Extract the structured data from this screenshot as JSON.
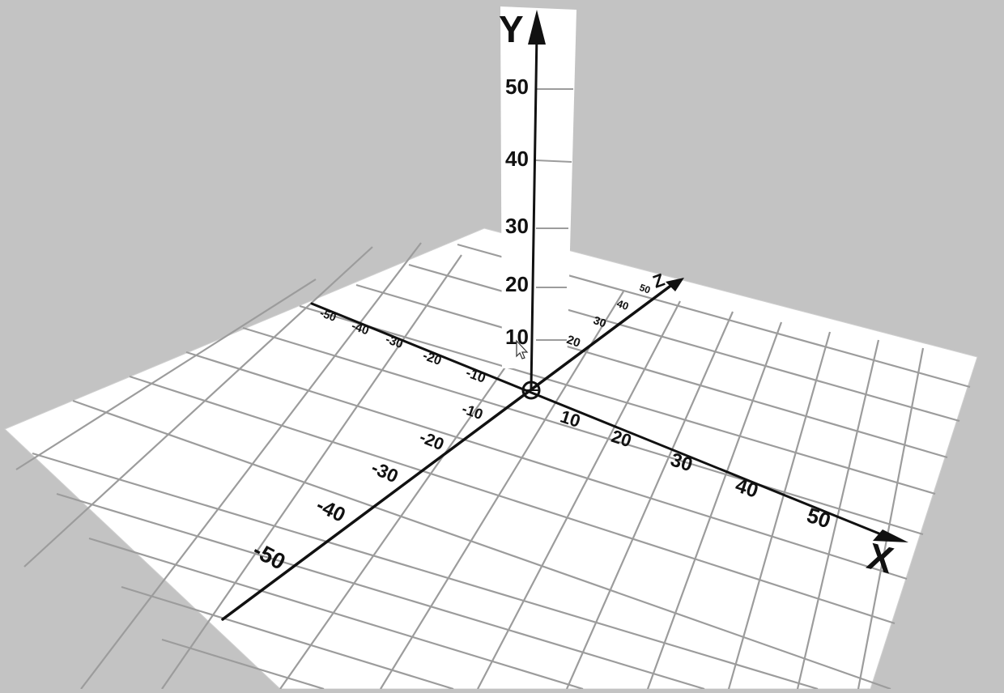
{
  "scene": {
    "background_color": "#c3c3c3",
    "floor_color": "#ffffff",
    "grid_color": "#9a9a9a",
    "axis_color": "#111111",
    "wall_color": "#ffffff"
  },
  "axes": {
    "x": {
      "label": "X",
      "ticks": [
        "10",
        "20",
        "30",
        "40",
        "50"
      ]
    },
    "y": {
      "label": "Y",
      "ticks": [
        "10",
        "20",
        "30",
        "40",
        "50"
      ]
    },
    "z": {
      "label": "Z",
      "positive_ticks": [
        "20",
        "30",
        "40",
        "50"
      ],
      "negative_ticks": [
        "-10",
        "-20",
        "-30",
        "-40",
        "-50"
      ]
    },
    "x_negative": {
      "ticks": [
        "-10",
        "-20",
        "-30",
        "-40",
        "-50"
      ]
    },
    "origin_marker": "circle"
  },
  "cursor": {
    "visible": true,
    "icon": "arrow-cursor-icon"
  }
}
